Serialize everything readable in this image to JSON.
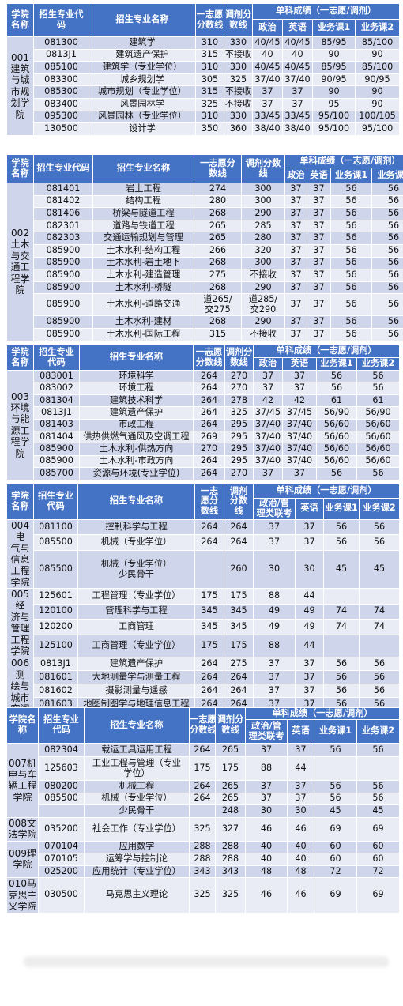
{
  "tables": [
    {
      "header": {
        "college": "学院\n名称",
        "code": "招生专业代\n码",
        "major": "招生专业名称",
        "first": "一志愿\n分数线",
        "adjust": "调剂分\n数线",
        "single": "单科成绩（一志愿/调剂）",
        "subs": [
          "政治",
          "英语",
          "业务课1",
          "业务课2"
        ]
      },
      "groups": [
        {
          "college": "001\n建筑\n与城\n市规\n划学\n院",
          "rows": [
            [
              "081300",
              "建筑学",
              "310",
              "330",
              "40/45",
              "40/45",
              "85/95",
              "85/100"
            ],
            [
              "0813J1",
              "建筑遗产保护",
              "315",
              "不接收",
              "40",
              "40",
              "90",
              "90"
            ],
            [
              "085100",
              "建筑学（专业学位）",
              "310",
              "330",
              "40/45",
              "40/45",
              "85/95",
              "85/100"
            ],
            [
              "083300",
              "城乡规划学",
              "305",
              "325",
              "37/40",
              "37/40",
              "90/95",
              "90/95"
            ],
            [
              "085300",
              "城市规划（专业学位）",
              "315",
              "不接收",
              "37",
              "37",
              "90",
              "90"
            ],
            [
              "083400",
              "风景园林学",
              "325",
              "不接收",
              "37",
              "37",
              "95",
              "90"
            ],
            [
              "095300",
              "风景园林（专业学位）",
              "310",
              "330",
              "33/45",
              "33/45",
              "95/100",
              "100/105"
            ],
            [
              "130500",
              "设计学",
              "350",
              "360",
              "38/40",
              "38/40",
              "95/100",
              "95/100"
            ]
          ]
        }
      ]
    },
    {
      "header": {
        "college": "学院\n名称",
        "code": "招生专业代码",
        "major": "招生专业名称",
        "first": "一志愿分\n数线",
        "adjust": "调剂分数\n线",
        "single": "单科成绩（一志愿/调剂）",
        "subs": [
          "政治",
          "英语",
          "业务课1",
          "业务课2"
        ]
      },
      "groups": [
        {
          "college": "002\n土木\n与交\n通工\n程学\n院",
          "rows": [
            [
              "081401",
              "岩土工程",
              "274",
              "300",
              "37",
              "37",
              "56",
              "56"
            ],
            [
              "081402",
              "结构工程",
              "280",
              "300",
              "37",
              "37",
              "56",
              "56"
            ],
            [
              "081406",
              "桥梁与隧道工程",
              "268",
              "290",
              "37",
              "37",
              "56",
              "56"
            ],
            [
              "082301",
              "道路与铁道工程",
              "265",
              "285",
              "37",
              "37",
              "56",
              "56"
            ],
            [
              "082303",
              "交通运输规划与管理",
              "265",
              "280",
              "37",
              "37",
              "56",
              "56"
            ],
            [
              "085900",
              "土木水利-结构工程",
              "266",
              "320",
              "37",
              "37",
              "56",
              "56"
            ],
            [
              "085900",
              "土木水利-岩土地下",
              "268",
              "300",
              "37",
              "37",
              "56",
              "56"
            ],
            [
              "085900",
              "土木水利-建造管理",
              "275",
              "不接收",
              "37",
              "37",
              "56",
              "56"
            ],
            [
              "085900",
              "土木水利-桥隧",
              "268",
              "290",
              "37",
              "37",
              "56",
              "56"
            ],
            [
              "085900",
              "土木水利-道路交通",
              "道265/\n交275",
              "道285/\n交290",
              "37",
              "37",
              "56",
              "56"
            ],
            [
              "085900",
              "土木水利-建材",
              "268",
              "290",
              "37",
              "37",
              "56",
              "56"
            ],
            [
              "085900",
              "土木水利-国际工程",
              "315",
              "不接收",
              "37",
              "37",
              "56",
              "56"
            ]
          ]
        }
      ]
    },
    {
      "header": {
        "college": "学院\n名称",
        "code": "招生专业\n代码",
        "major": "招生专业名称",
        "first": "一志愿\n分数线",
        "adjust": "调剂分\n数线",
        "single": "单科成绩（一志愿/调剂）",
        "subs": [
          "政治",
          "英语",
          "业务课1",
          "业务课2"
        ]
      },
      "groups": [
        {
          "college": "003\n环境\n与能\n源工\n程学\n院",
          "rows": [
            [
              "083001",
              "环境科学",
              "264",
              "270",
              "37",
              "37",
              "56",
              "56"
            ],
            [
              "083002",
              "环境工程",
              "264",
              "270",
              "37",
              "37",
              "56",
              "56"
            ],
            [
              "081304",
              "建筑技术科学",
              "264",
              "278",
              "42",
              "42",
              "61",
              "61"
            ],
            [
              "0813J1",
              "建筑遗产保护",
              "264",
              "325",
              "37/45",
              "37/45",
              "56/90",
              "56/90"
            ],
            [
              "081403",
              "市政工程",
              "264",
              "295",
              "37/40",
              "37/40",
              "56/60",
              "56/60"
            ],
            [
              "081404",
              "供热供燃气通风及空调工程",
              "269",
              "295",
              "37/40",
              "37/40",
              "56/60",
              "56/60"
            ],
            [
              "085900",
              "土木水利-供热方向",
              "270",
              "295",
              "37/40",
              "37/40",
              "56/60",
              "56/60"
            ],
            [
              "085900",
              "土木水利-市政方向",
              "264",
              "295",
              "37/40",
              "37/40",
              "56/60",
              "56/60"
            ],
            [
              "085700",
              "资源与环境(专业学位)",
              "264",
              "270",
              "37",
              "37",
              "56",
              "56"
            ]
          ]
        }
      ]
    },
    {
      "header": {
        "college": "学院\n名称",
        "code": "招生专业\n代码",
        "major": "招生专业名称",
        "first": "一志\n愿分\n数线",
        "adjust": "调剂\n分数\n线",
        "single": "单科成绩（一志愿/调剂）",
        "subs": [
          "政治/管\n理类联考",
          "英语",
          "业务课1",
          "业务课2"
        ]
      },
      "groups": [
        {
          "college": "004电\n气与\n信息\n工程\n学院",
          "rows": [
            [
              "081100",
              "控制科学与工程",
              "264",
              "264",
              "37",
              "37",
              "56",
              "56"
            ],
            [
              "085500",
              "机械（专业学位）",
              "264",
              "264",
              "37",
              "37",
              "56",
              "56"
            ],
            [
              "085500",
              "机械（专业学位）\n少民骨干",
              "",
              "260",
              "30",
              "30",
              "45",
              "45"
            ]
          ]
        },
        {
          "college": "005经\n济与\n管理\n工程\n学院",
          "rows": [
            [
              "125601",
              "工程管理（专业学位）",
              "175",
              "175",
              "88",
              "44",
              "",
              ""
            ],
            [
              "120100",
              "管理科学与工程",
              "345",
              "345",
              "49",
              "49",
              "74",
              "74"
            ],
            [
              "120200",
              "工商管理",
              "345",
              "345",
              "49",
              "49",
              "74",
              "74"
            ],
            [
              "125100",
              "工商管理（专业学位）",
              "175",
              "175",
              "88",
              "44",
              "",
              ""
            ]
          ]
        },
        {
          "college": "006测\n绘与\n城市\n空间\n信息\n学院",
          "rows": [
            [
              "0813J1",
              "建筑遗产保护",
              "264",
              "275",
              "37",
              "37",
              "56",
              "56"
            ],
            [
              "081601",
              "大地测量学与测量工程",
              "264",
              "264",
              "37",
              "37",
              "56",
              "56"
            ],
            [
              "081602",
              "摄影测量与遥感",
              "264",
              "264",
              "37",
              "37",
              "56",
              "56"
            ],
            [
              "081603",
              "地图制图学与地理信息工程",
              "264",
              "264",
              "37",
              "37",
              "56",
              "56"
            ],
            [
              "085700",
              "资源与环境(专业学位)",
              "264",
              "264",
              "37",
              "37",
              "56",
              "56"
            ],
            [
              "",
              "少民骨干",
              "",
              "248",
              "30",
              "30",
              "45",
              "45"
            ]
          ]
        }
      ]
    },
    {
      "header": {
        "college": "学院名\n称",
        "code": "招生专业\n代码",
        "major": "招生专业名称",
        "first": "一志愿\n分数线",
        "adjust": "调剂分\n数线",
        "single": "单科成绩（一志愿/调剂）",
        "subs": [
          "政治/管\n理类联考",
          "英语",
          "业务课1",
          "业务课2"
        ]
      },
      "groups": [
        {
          "college": "007机\n电与车\n辆工程\n学院",
          "rows": [
            [
              "082304",
              "载运工具运用工程",
              "264",
              "265",
              "37",
              "37",
              "56",
              "56"
            ],
            [
              "125603",
              "工业工程与管理（专业\n学位）",
              "175",
              "175",
              "88",
              "44",
              "",
              ""
            ],
            [
              "080200",
              "机械工程",
              "264",
              "265",
              "37",
              "37",
              "56",
              "56"
            ],
            [
              "085500",
              "机械（专业学位）",
              "264",
              "265",
              "37",
              "37",
              "56",
              "56"
            ],
            [
              "",
              "少民骨干",
              "",
              "248",
              "30",
              "30",
              "45",
              "45"
            ]
          ]
        },
        {
          "college": "008文\n法学院",
          "rows": [
            [
              "035200",
              "社会工作（专业学位）",
              "325",
              "327",
              "46",
              "46",
              "69",
              "69"
            ]
          ]
        },
        {
          "college": "009理\n学院",
          "rows": [
            [
              "070104",
              "应用数学",
              "288",
              "288",
              "40",
              "40",
              "60",
              "60"
            ],
            [
              "070105",
              "运筹学与控制论",
              "288",
              "288",
              "40",
              "40",
              "60",
              "60"
            ],
            [
              "025200",
              "应用统计（专业学位）",
              "343",
              "343",
              "48",
              "48",
              "72",
              "72"
            ]
          ]
        },
        {
          "college": "010马\n克思主\n义学院",
          "rows": [
            [
              "030500",
              "马克思主义理论",
              "325",
              "325",
              "46",
              "46",
              "69",
              "69"
            ]
          ]
        }
      ]
    }
  ]
}
